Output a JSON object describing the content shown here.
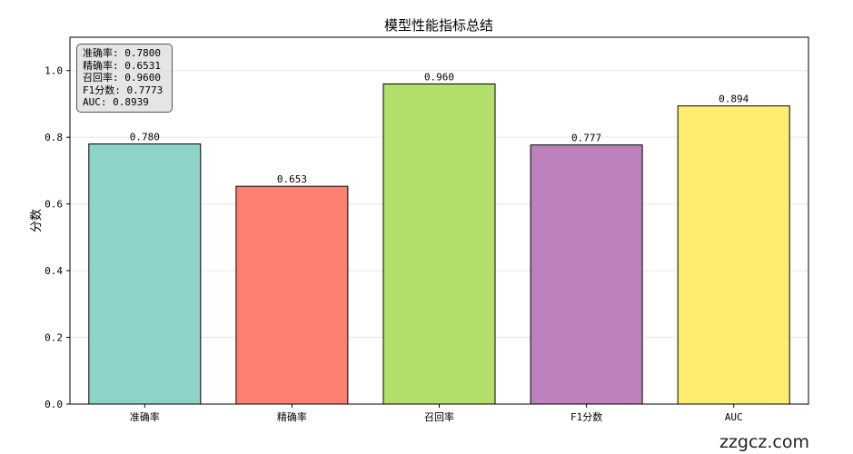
{
  "chart_data": {
    "type": "bar",
    "title": "模型性能指标总结",
    "xlabel": "",
    "ylabel": "分数",
    "categories": [
      "准确率",
      "精确率",
      "召回率",
      "F1分数",
      "AUC"
    ],
    "values": [
      0.78,
      0.653,
      0.96,
      0.777,
      0.894
    ],
    "data_labels": [
      "0.780",
      "0.653",
      "0.960",
      "0.777",
      "0.894"
    ],
    "colors": [
      "#8dd3c7",
      "#fb8072",
      "#b3de69",
      "#bc80bd",
      "#ffed6f"
    ],
    "ylim": [
      0,
      1.1
    ],
    "yticks": [
      "0.0",
      "0.2",
      "0.4",
      "0.6",
      "0.8",
      "1.0"
    ],
    "grid": "y",
    "stats_box": [
      "准确率: 0.7800",
      "精确率: 0.6531",
      "召回率: 0.9600",
      "F1分数: 0.7773",
      "AUC: 0.8939"
    ]
  },
  "watermark": "zzgcz.com"
}
